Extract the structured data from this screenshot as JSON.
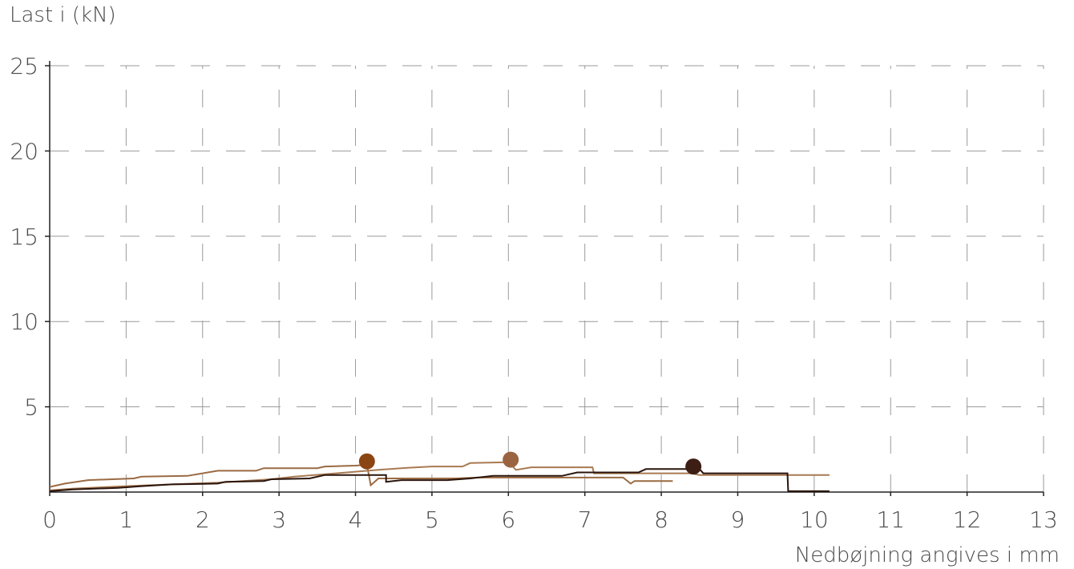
{
  "chart_data": {
    "type": "line",
    "title": "",
    "ylabel": "Last i (kN)",
    "xlabel": "Nedbøjning angives i mm",
    "xlim": [
      0,
      13
    ],
    "ylim": [
      0,
      25
    ],
    "xticks": [
      0,
      1,
      2,
      3,
      4,
      5,
      6,
      7,
      8,
      9,
      10,
      11,
      12,
      13
    ],
    "yticks": [
      5,
      10,
      15,
      20,
      25
    ],
    "grid": true,
    "legend": "none",
    "series": [
      {
        "color": "#9a6a42",
        "points": [
          [
            0,
            0.3
          ],
          [
            0.2,
            0.5
          ],
          [
            0.5,
            0.7
          ],
          [
            1.1,
            0.8
          ],
          [
            1.2,
            0.9
          ],
          [
            1.8,
            0.95
          ],
          [
            2.0,
            1.1
          ],
          [
            2.2,
            1.25
          ],
          [
            2.7,
            1.25
          ],
          [
            2.8,
            1.4
          ],
          [
            3.5,
            1.4
          ],
          [
            3.6,
            1.5
          ],
          [
            4.0,
            1.55
          ],
          [
            4.15,
            1.6
          ],
          [
            4.2,
            0.4
          ],
          [
            4.3,
            0.8
          ],
          [
            5.3,
            0.8
          ],
          [
            5.6,
            0.85
          ],
          [
            7.5,
            0.85
          ],
          [
            7.6,
            0.5
          ],
          [
            7.65,
            0.65
          ],
          [
            8.15,
            0.65
          ]
        ],
        "marker": {
          "x": 4.15,
          "y": 1.8,
          "color": "#8b4513"
        }
      },
      {
        "color": "#a87a52",
        "points": [
          [
            0,
            0.1
          ],
          [
            0.3,
            0.2
          ],
          [
            1.0,
            0.35
          ],
          [
            1.6,
            0.45
          ],
          [
            2.2,
            0.55
          ],
          [
            2.9,
            0.75
          ],
          [
            3.2,
            0.9
          ],
          [
            3.6,
            1.05
          ],
          [
            4.3,
            1.3
          ],
          [
            4.6,
            1.4
          ],
          [
            5.0,
            1.5
          ],
          [
            5.4,
            1.5
          ],
          [
            5.5,
            1.7
          ],
          [
            6.0,
            1.75
          ],
          [
            6.1,
            1.3
          ],
          [
            6.3,
            1.45
          ],
          [
            7.1,
            1.45
          ],
          [
            7.12,
            1.1
          ],
          [
            8.4,
            1.1
          ],
          [
            8.5,
            1.0
          ],
          [
            10.2,
            1.0
          ]
        ],
        "marker": {
          "x": 6.03,
          "y": 1.9,
          "color": "#9b6440"
        }
      },
      {
        "color": "#2a140c",
        "points": [
          [
            0,
            0.05
          ],
          [
            0.3,
            0.15
          ],
          [
            0.9,
            0.25
          ],
          [
            1.2,
            0.35
          ],
          [
            1.6,
            0.45
          ],
          [
            2.2,
            0.5
          ],
          [
            2.3,
            0.6
          ],
          [
            2.8,
            0.65
          ],
          [
            2.9,
            0.75
          ],
          [
            3.4,
            0.8
          ],
          [
            3.6,
            1.0
          ],
          [
            4.1,
            1.0
          ],
          [
            4.4,
            1.0
          ],
          [
            4.4,
            0.6
          ],
          [
            4.6,
            0.7
          ],
          [
            5.2,
            0.7
          ],
          [
            5.5,
            0.8
          ],
          [
            5.8,
            0.95
          ],
          [
            6.7,
            0.95
          ],
          [
            6.9,
            1.15
          ],
          [
            7.7,
            1.15
          ],
          [
            7.8,
            1.35
          ],
          [
            8.5,
            1.35
          ],
          [
            8.55,
            1.1
          ],
          [
            9.65,
            1.1
          ],
          [
            9.66,
            0.05
          ],
          [
            10.2,
            0.05
          ]
        ],
        "marker": {
          "x": 8.42,
          "y": 1.5,
          "color": "#3d1e14"
        }
      }
    ]
  }
}
